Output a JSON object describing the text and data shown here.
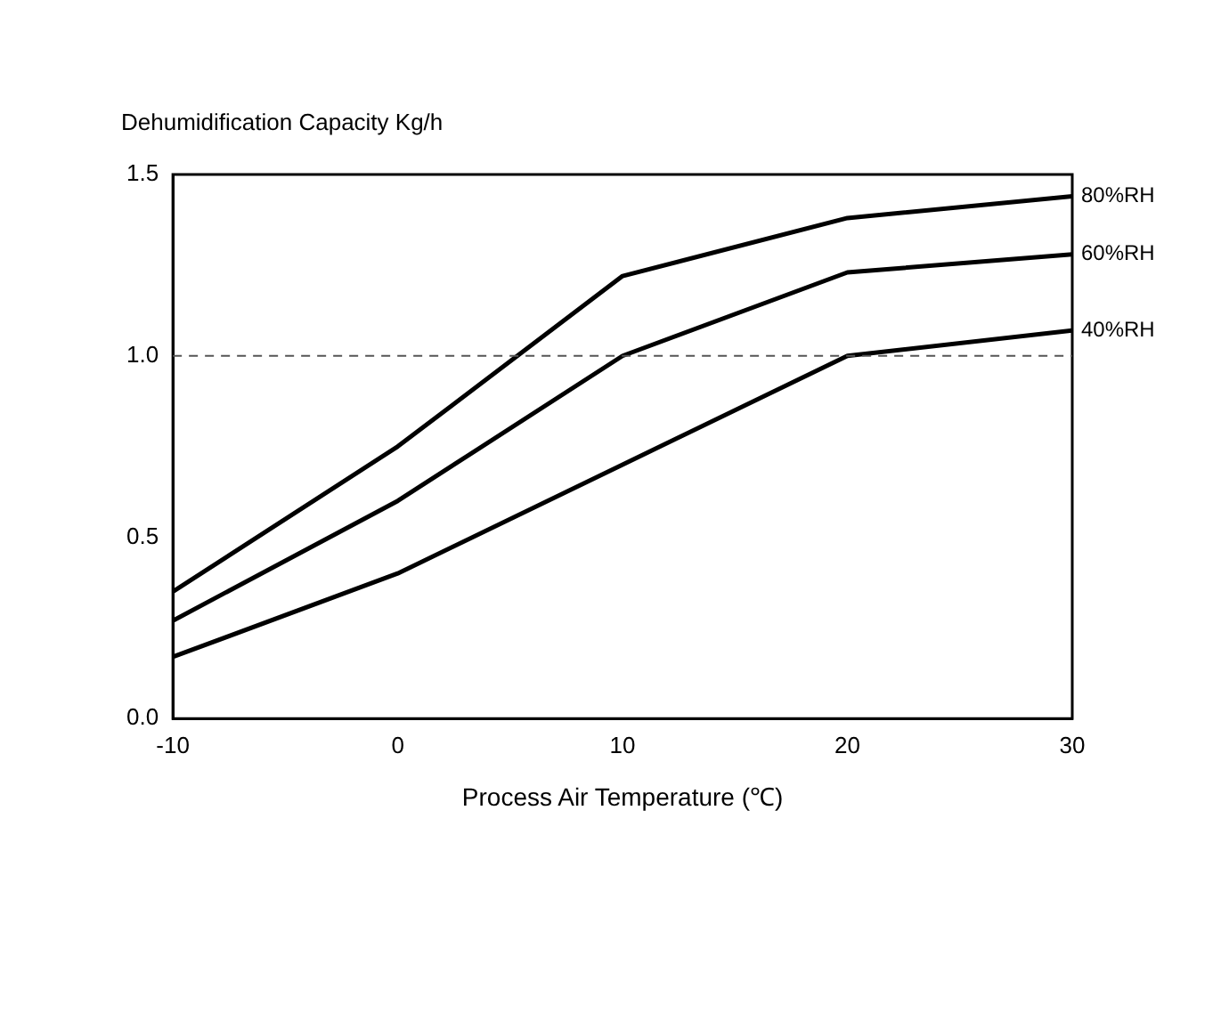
{
  "chart_data": {
    "type": "line",
    "ylabel": "Dehumidification Capacity Kg/h",
    "xlabel": "Process Air Temperature (℃)",
    "x": [
      -10,
      0,
      10,
      20,
      30
    ],
    "series": [
      {
        "name": "80%RH",
        "color": "#000000",
        "values": [
          0.35,
          0.75,
          1.22,
          1.38,
          1.44
        ]
      },
      {
        "name": "60%RH",
        "color": "#000000",
        "values": [
          0.27,
          0.6,
          1.0,
          1.23,
          1.28
        ]
      },
      {
        "name": "40%RH",
        "color": "#000000",
        "values": [
          0.17,
          0.4,
          0.7,
          1.0,
          1.07
        ]
      }
    ],
    "xlim": [
      -10,
      30
    ],
    "xticks": [
      -10,
      0,
      10,
      20,
      30
    ],
    "ylim": [
      0,
      1.5
    ],
    "yticks": [
      {
        "value": 0,
        "label": "0.0"
      },
      {
        "value": 0.5,
        "label": "0.5"
      },
      {
        "value": 1,
        "label": "1.0"
      },
      {
        "value": 1.5,
        "label": "1.5"
      }
    ],
    "ref_lines": [
      {
        "axis": "y",
        "value": 1,
        "color": "#555555",
        "line_style": "dashed"
      }
    ],
    "grid": false,
    "legend": false,
    "marker": "none",
    "line_style": "solid"
  }
}
